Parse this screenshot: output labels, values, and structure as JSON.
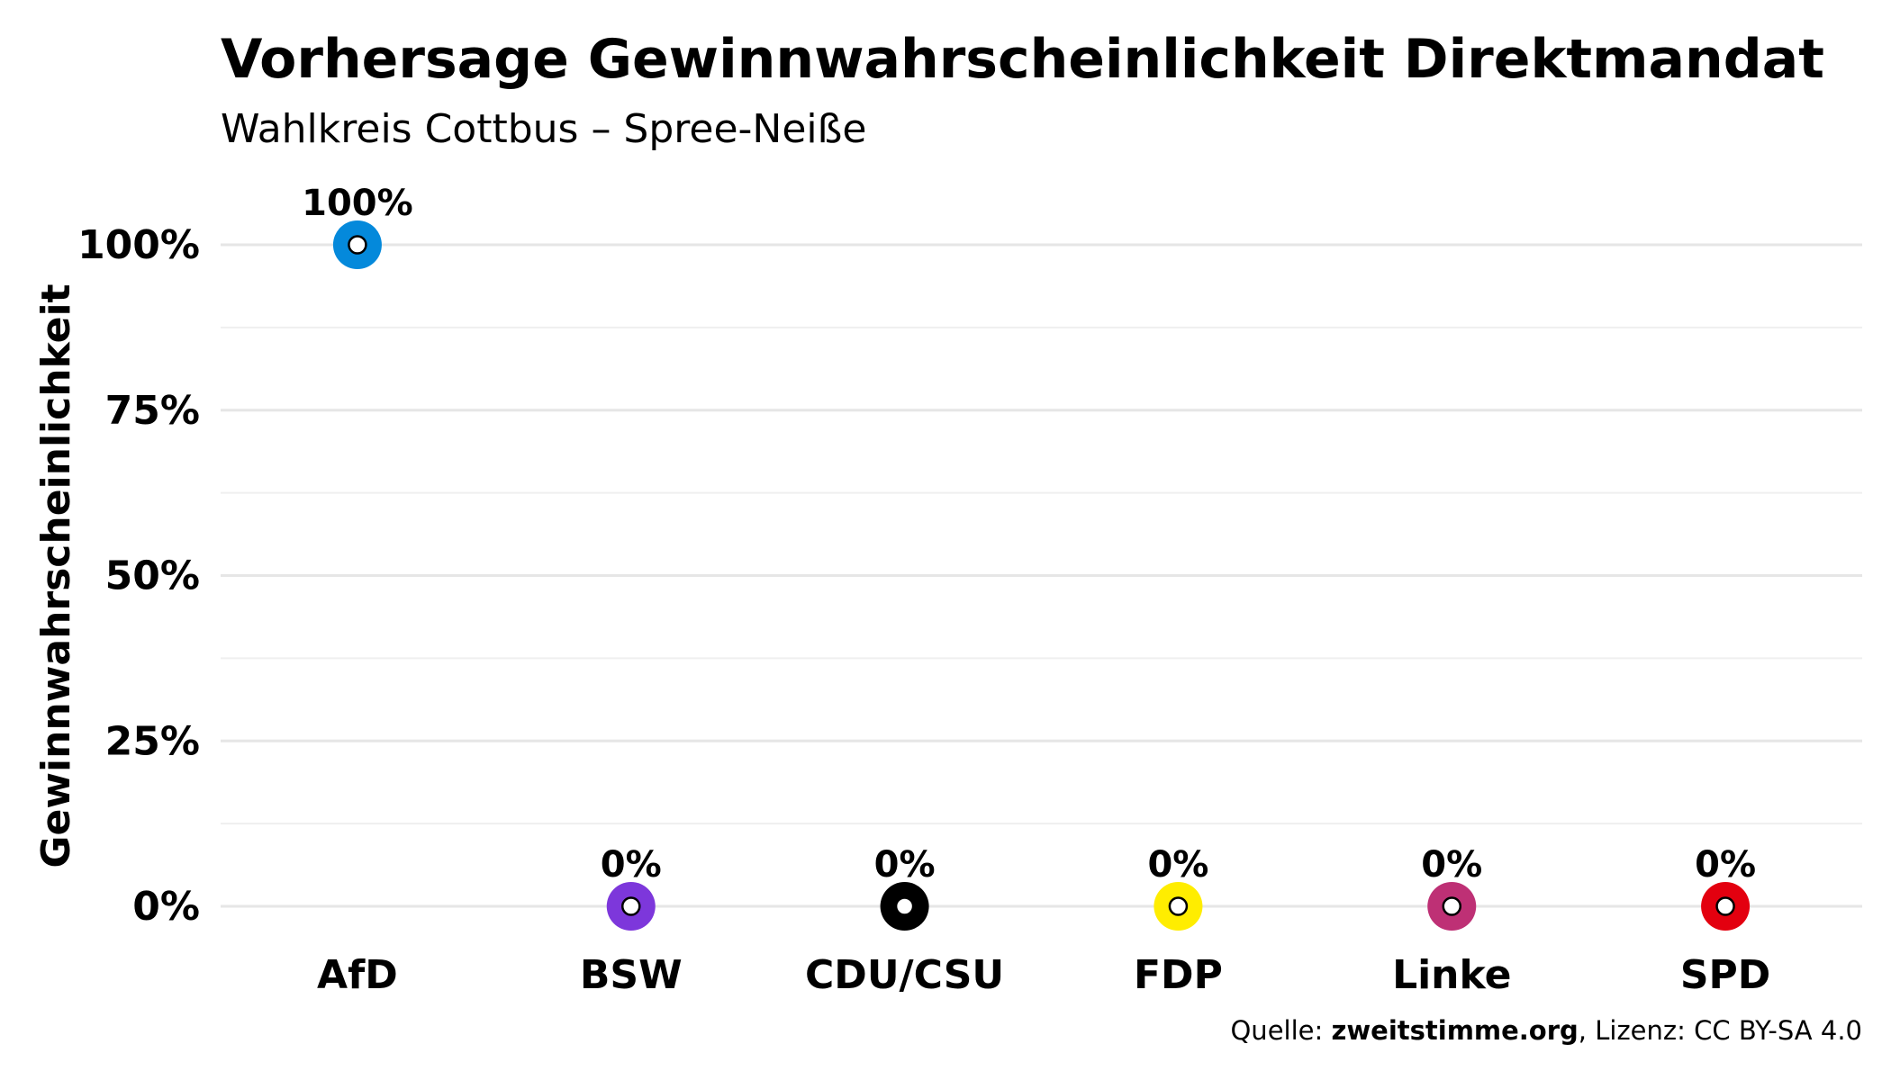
{
  "chart_data": {
    "type": "scatter",
    "title": "Vorhersage Gewinnwahrscheinlichkeit Direktmandat",
    "subtitle": "Wahlkreis Cottbus – Spree-Neiße",
    "xlabel": "",
    "ylabel": "Gewinnwahrscheinlichkeit",
    "ylim": [
      0,
      100
    ],
    "yticks": [
      0,
      25,
      50,
      75,
      100
    ],
    "ytick_labels": [
      "0%",
      "25%",
      "50%",
      "75%",
      "100%"
    ],
    "grid": true,
    "legend": "none",
    "categories": [
      "AfD",
      "BSW",
      "CDU/CSU",
      "FDP",
      "Linke",
      "SPD"
    ],
    "values": [
      100,
      0,
      0,
      0,
      0,
      0
    ],
    "value_labels": [
      "100%",
      "0%",
      "0%",
      "0%",
      "0%",
      "0%"
    ],
    "colors": [
      "#0489DB",
      "#7D37DB",
      "#000000",
      "#FFED00",
      "#BE3075",
      "#E3000F"
    ],
    "caption": {
      "prefix": "Quelle: ",
      "source": "zweitstimme.org",
      "suffix": ", Lizenz: CC BY-SA 4.0"
    }
  }
}
